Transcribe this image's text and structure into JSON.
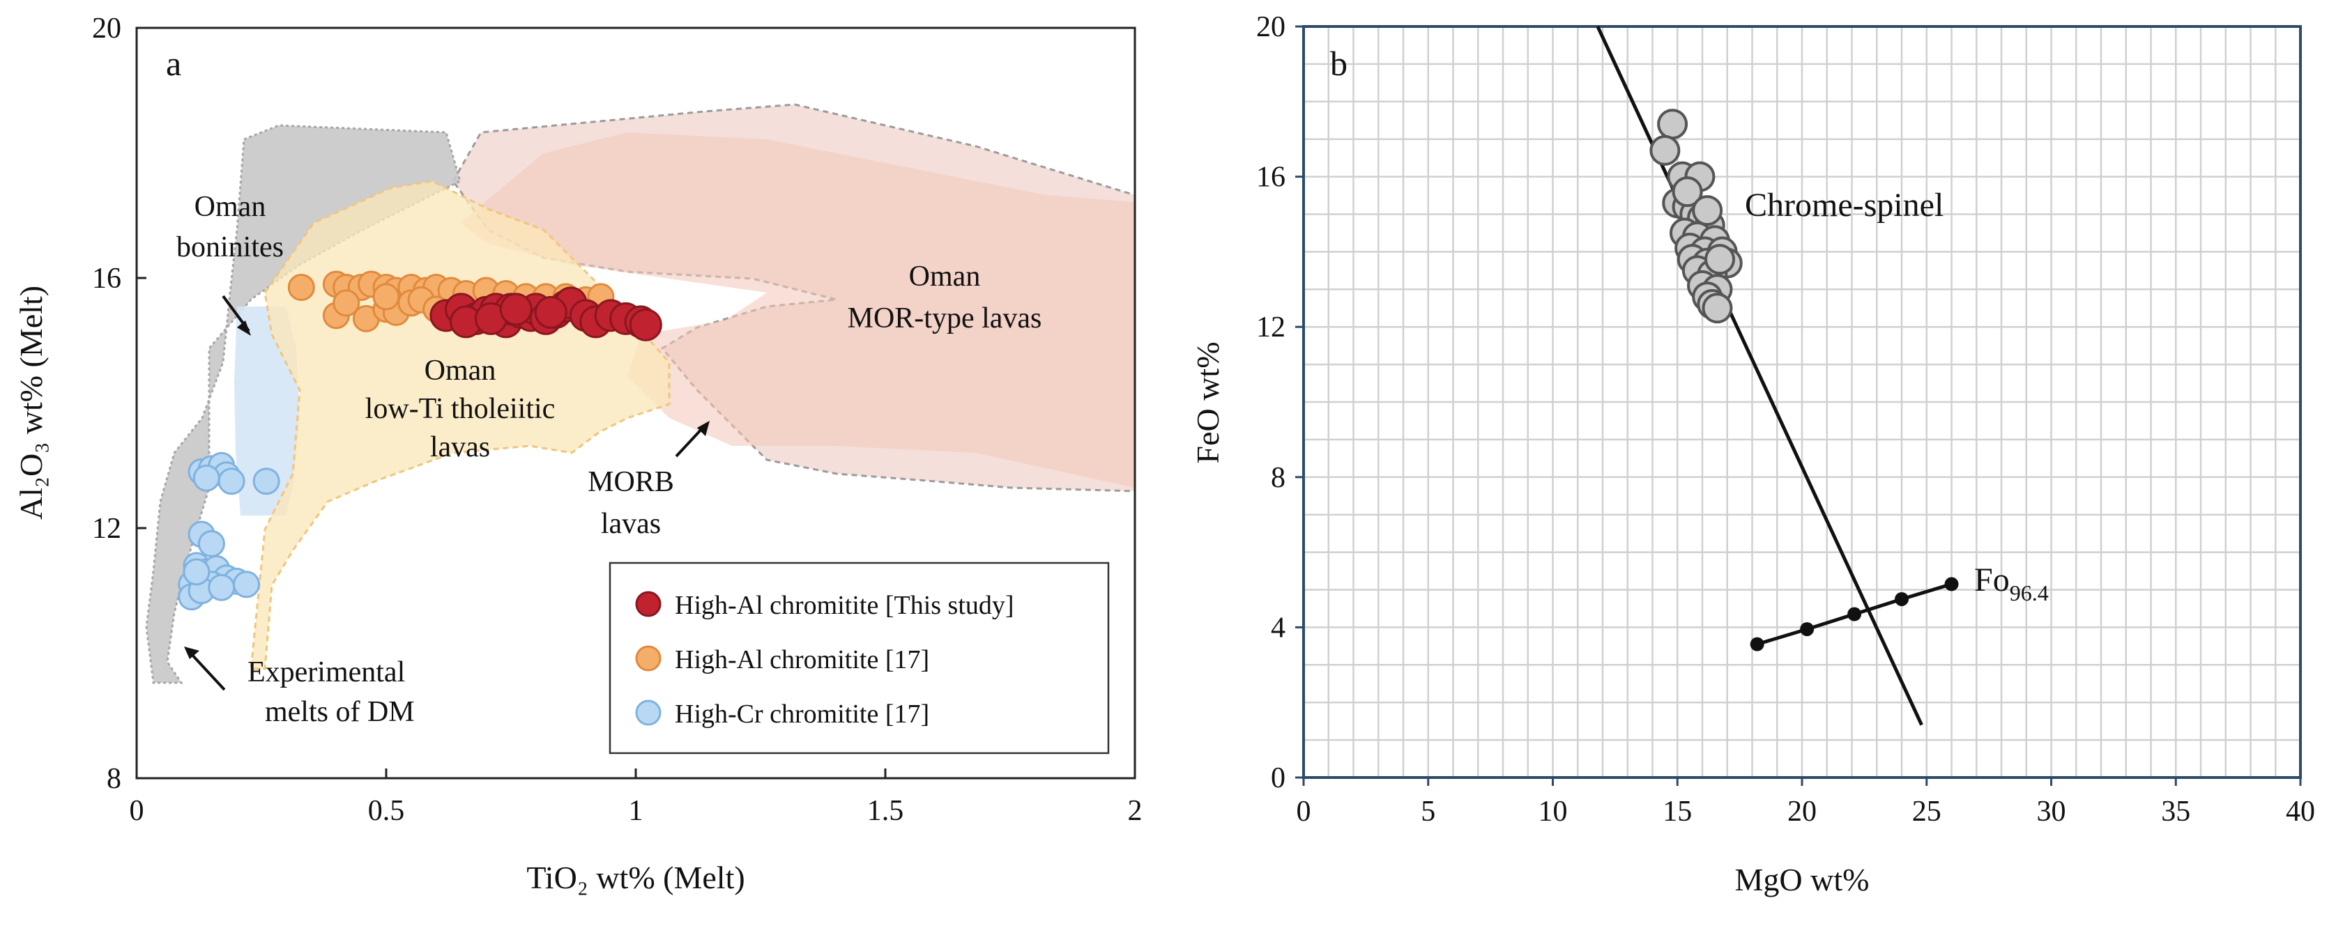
{
  "chart_data": [
    {
      "panel_label": "a",
      "type": "scatter",
      "xlabel": "TiO₂ wt% (Melt)",
      "ylabel": "Al₂O₃ wt% (Melt)",
      "xlim": [
        0,
        2
      ],
      "ylim": [
        8,
        20
      ],
      "xticks": [
        "0",
        "0.5",
        "1",
        "1.5",
        "2"
      ],
      "yticks": [
        "8",
        "12",
        "16",
        "20"
      ],
      "grid": false,
      "legend_position": "bottom-right",
      "field_labels": {
        "boninites": [
          "Oman",
          "boninites"
        ],
        "lowti": [
          "Oman",
          "low-Ti tholeiitic",
          "lavas"
        ],
        "mor": [
          "Oman",
          "MOR-type lavas"
        ],
        "morb": [
          "MORB",
          "lavas"
        ],
        "dm": [
          "Experimental",
          "melts of DM"
        ]
      },
      "series": [
        {
          "name": "High-Al chromitite [This study]",
          "color": "#c0232f",
          "stroke": "#8a1620",
          "points": [
            [
              0.62,
              15.4
            ],
            [
              0.65,
              15.5
            ],
            [
              0.68,
              15.35
            ],
            [
              0.7,
              15.45
            ],
            [
              0.72,
              15.5
            ],
            [
              0.74,
              15.3
            ],
            [
              0.75,
              15.5
            ],
            [
              0.77,
              15.45
            ],
            [
              0.79,
              15.4
            ],
            [
              0.8,
              15.5
            ],
            [
              0.82,
              15.35
            ],
            [
              0.84,
              15.45
            ],
            [
              0.86,
              15.55
            ],
            [
              0.87,
              15.6
            ],
            [
              0.9,
              15.4
            ],
            [
              0.92,
              15.3
            ],
            [
              0.95,
              15.4
            ],
            [
              0.98,
              15.35
            ],
            [
              1.01,
              15.3
            ],
            [
              1.02,
              15.25
            ],
            [
              0.66,
              15.3
            ],
            [
              0.71,
              15.35
            ],
            [
              0.76,
              15.5
            ],
            [
              0.83,
              15.45
            ]
          ]
        },
        {
          "name": "High-Al chromitite [17]",
          "color": "#f5ae6a",
          "stroke": "#e08a3c",
          "points": [
            [
              0.33,
              15.85
            ],
            [
              0.4,
              15.9
            ],
            [
              0.42,
              15.85
            ],
            [
              0.45,
              15.85
            ],
            [
              0.47,
              15.9
            ],
            [
              0.5,
              15.85
            ],
            [
              0.52,
              15.8
            ],
            [
              0.55,
              15.85
            ],
            [
              0.58,
              15.8
            ],
            [
              0.6,
              15.85
            ],
            [
              0.63,
              15.8
            ],
            [
              0.66,
              15.75
            ],
            [
              0.7,
              15.8
            ],
            [
              0.74,
              15.75
            ],
            [
              0.78,
              15.7
            ],
            [
              0.82,
              15.7
            ],
            [
              0.86,
              15.7
            ],
            [
              0.9,
              15.65
            ],
            [
              0.93,
              15.7
            ],
            [
              0.4,
              15.4
            ],
            [
              0.46,
              15.35
            ],
            [
              0.5,
              15.5
            ],
            [
              0.52,
              15.45
            ],
            [
              0.55,
              15.6
            ],
            [
              0.57,
              15.65
            ],
            [
              0.5,
              15.7
            ],
            [
              0.6,
              15.5
            ],
            [
              0.42,
              15.6
            ]
          ]
        },
        {
          "name": "High-Cr chromitite [17]",
          "color": "#b8d8f4",
          "stroke": "#7fb2df",
          "points": [
            [
              0.13,
              12.9
            ],
            [
              0.15,
              12.95
            ],
            [
              0.17,
              13.0
            ],
            [
              0.18,
              12.85
            ],
            [
              0.19,
              12.75
            ],
            [
              0.14,
              12.8
            ],
            [
              0.26,
              12.75
            ],
            [
              0.13,
              11.9
            ],
            [
              0.15,
              11.75
            ],
            [
              0.12,
              11.4
            ],
            [
              0.14,
              11.3
            ],
            [
              0.16,
              11.35
            ],
            [
              0.18,
              11.2
            ],
            [
              0.2,
              11.15
            ],
            [
              0.22,
              11.1
            ],
            [
              0.11,
              11.1
            ],
            [
              0.13,
              11.05
            ],
            [
              0.15,
              11.1
            ],
            [
              0.11,
              10.9
            ],
            [
              0.13,
              11.0
            ],
            [
              0.12,
              11.3
            ],
            [
              0.17,
              11.05
            ]
          ]
        }
      ]
    },
    {
      "panel_label": "b",
      "type": "scatter",
      "xlabel": "MgO wt%",
      "ylabel": "FeO wt%",
      "xlim": [
        0,
        40
      ],
      "ylim": [
        0,
        20
      ],
      "xticks": [
        "0",
        "5",
        "10",
        "15",
        "20",
        "25",
        "30",
        "35",
        "40"
      ],
      "yticks": [
        "0",
        "4",
        "8",
        "12",
        "16",
        "20"
      ],
      "grid": true,
      "annotations": {
        "spinel_label": "Chrome-spinel",
        "fo_label": "Fo",
        "fo_subscript": "96.4"
      },
      "trend_line": [
        [
          11.8,
          20.0
        ],
        [
          24.8,
          1.4
        ]
      ],
      "olivine_line": [
        [
          18.2,
          3.55
        ],
        [
          20.2,
          3.95
        ],
        [
          22.1,
          4.35
        ],
        [
          24.0,
          4.75
        ],
        [
          26.0,
          5.15
        ]
      ],
      "series": [
        {
          "name": "Chrome-spinel",
          "color": "#c9c9c9",
          "stroke": "#555555",
          "points": [
            [
              14.8,
              17.4
            ],
            [
              14.5,
              16.7
            ],
            [
              15.2,
              16.0
            ],
            [
              15.9,
              16.0
            ],
            [
              15.0,
              15.3
            ],
            [
              15.4,
              15.2
            ],
            [
              15.7,
              15.0
            ],
            [
              16.0,
              14.9
            ],
            [
              16.3,
              14.7
            ],
            [
              15.3,
              14.5
            ],
            [
              15.8,
              14.4
            ],
            [
              16.5,
              14.3
            ],
            [
              15.5,
              14.1
            ],
            [
              16.1,
              14.0
            ],
            [
              16.8,
              14.0
            ],
            [
              15.6,
              13.8
            ],
            [
              16.2,
              13.7
            ],
            [
              17.0,
              13.7
            ],
            [
              15.8,
              13.5
            ],
            [
              16.4,
              13.4
            ],
            [
              16.0,
              13.1
            ],
            [
              16.6,
              13.0
            ],
            [
              16.2,
              12.8
            ],
            [
              16.4,
              12.6
            ],
            [
              16.6,
              12.5
            ],
            [
              15.4,
              15.6
            ],
            [
              16.2,
              15.1
            ],
            [
              16.7,
              13.8
            ]
          ]
        }
      ]
    }
  ]
}
